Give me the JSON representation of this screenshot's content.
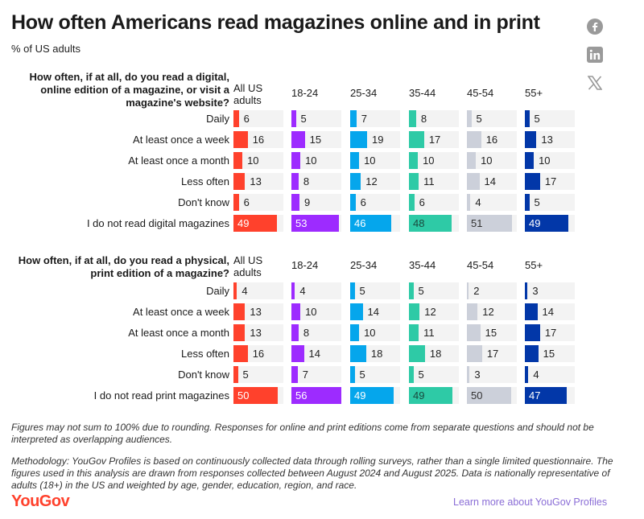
{
  "title": "How often Americans read magazines online and in print",
  "subtitle": "% of US adults",
  "social": [
    "facebook-icon",
    "linkedin-icon",
    "x-icon"
  ],
  "chart_data": [
    {
      "type": "bar",
      "question": "How often, if at all, do you read a digital, online edition of a magazine, or visit a magazine's website?",
      "columns": [
        "All US adults",
        "18-24",
        "25-34",
        "35-44",
        "45-54",
        "55+"
      ],
      "categories": [
        "Daily",
        "At least once a week",
        "At least once a month",
        "Less often",
        "Don't know",
        "I do not read digital magazines"
      ],
      "series": [
        {
          "name": "All US adults",
          "color": "#ff412c",
          "values": [
            6,
            16,
            10,
            13,
            6,
            49
          ]
        },
        {
          "name": "18-24",
          "color": "#9d2bff",
          "values": [
            5,
            15,
            10,
            8,
            9,
            53
          ]
        },
        {
          "name": "25-34",
          "color": "#05a6ec",
          "values": [
            7,
            19,
            10,
            12,
            6,
            46
          ]
        },
        {
          "name": "35-44",
          "color": "#2ecaa6",
          "values": [
            8,
            17,
            10,
            11,
            6,
            48
          ]
        },
        {
          "name": "45-54",
          "color": "#ccd0da",
          "values": [
            5,
            16,
            10,
            14,
            4,
            51
          ]
        },
        {
          "name": "55+",
          "color": "#0237a8",
          "values": [
            5,
            13,
            10,
            17,
            5,
            49
          ]
        }
      ]
    },
    {
      "type": "bar",
      "question": "How often, if at all, do you read a physical, print edition of a magazine?",
      "columns": [
        "All US adults",
        "18-24",
        "25-34",
        "35-44",
        "45-54",
        "55+"
      ],
      "categories": [
        "Daily",
        "At least once a week",
        "At least once a month",
        "Less often",
        "Don't know",
        "I do not read print magazines"
      ],
      "series": [
        {
          "name": "All US adults",
          "color": "#ff412c",
          "values": [
            4,
            13,
            13,
            16,
            5,
            50
          ]
        },
        {
          "name": "18-24",
          "color": "#9d2bff",
          "values": [
            4,
            10,
            8,
            14,
            7,
            56
          ]
        },
        {
          "name": "25-34",
          "color": "#05a6ec",
          "values": [
            5,
            14,
            10,
            18,
            5,
            49
          ]
        },
        {
          "name": "35-44",
          "color": "#2ecaa6",
          "values": [
            5,
            12,
            11,
            18,
            5,
            49
          ]
        },
        {
          "name": "45-54",
          "color": "#ccd0da",
          "values": [
            2,
            12,
            15,
            17,
            3,
            50
          ]
        },
        {
          "name": "55+",
          "color": "#0237a8",
          "values": [
            3,
            14,
            17,
            15,
            4,
            47
          ]
        }
      ]
    }
  ],
  "value_text_colors": [
    "#ffffff",
    "#ffffff",
    "#ffffff",
    "#1a4a3e",
    "#333333",
    "#ffffff"
  ],
  "footnote": "Figures may not sum to 100% due to rounding. Responses for online and print editions come from separate questions and should not be interpreted as overlapping audiences.",
  "methodology": "Methodology: YouGov Profiles is based on continuously collected data through rolling surveys, rather than a single limited questionnaire. The figures used in this analysis are drawn from responses collected between August 2024 and August 2025. Data is nationally representative of adults (18+) in the US and weighted by age, gender, education, region, and race.",
  "logo": "YouGov",
  "link": "Learn more about YouGov Profiles"
}
